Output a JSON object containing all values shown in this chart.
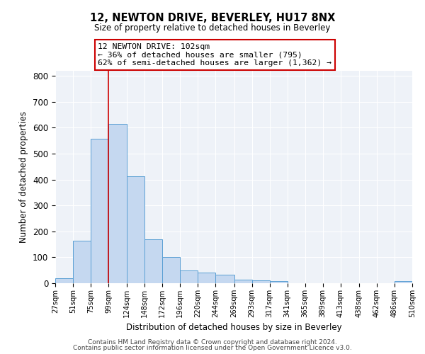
{
  "title": "12, NEWTON DRIVE, BEVERLEY, HU17 8NX",
  "subtitle": "Size of property relative to detached houses in Beverley",
  "xlabel": "Distribution of detached houses by size in Beverley",
  "ylabel": "Number of detached properties",
  "bar_left_edges": [
    27,
    51,
    75,
    99,
    124,
    148,
    172,
    196,
    220,
    244,
    269,
    293,
    317,
    341,
    365,
    389,
    413,
    438,
    462,
    486
  ],
  "bar_heights": [
    18,
    165,
    558,
    615,
    413,
    170,
    102,
    50,
    40,
    33,
    13,
    11,
    7,
    0,
    0,
    0,
    0,
    0,
    0,
    8
  ],
  "bar_widths": [
    24,
    24,
    24,
    25,
    24,
    24,
    24,
    24,
    24,
    25,
    24,
    24,
    24,
    24,
    24,
    24,
    25,
    24,
    24,
    24
  ],
  "tick_labels": [
    "27sqm",
    "51sqm",
    "75sqm",
    "99sqm",
    "124sqm",
    "148sqm",
    "172sqm",
    "196sqm",
    "220sqm",
    "244sqm",
    "269sqm",
    "293sqm",
    "317sqm",
    "341sqm",
    "365sqm",
    "389sqm",
    "413sqm",
    "438sqm",
    "462sqm",
    "486sqm",
    "510sqm"
  ],
  "tick_positions": [
    27,
    51,
    75,
    99,
    124,
    148,
    172,
    196,
    220,
    244,
    269,
    293,
    317,
    341,
    365,
    389,
    413,
    438,
    462,
    486,
    510
  ],
  "bar_color": "#c5d8f0",
  "bar_edge_color": "#5a9fd4",
  "property_line_x": 99,
  "annotation_line1": "12 NEWTON DRIVE: 102sqm",
  "annotation_line2": "← 36% of detached houses are smaller (795)",
  "annotation_line3": "62% of semi-detached houses are larger (1,362) →",
  "annotation_box_color": "#cc0000",
  "ylim": [
    0,
    820
  ],
  "yticks": [
    0,
    100,
    200,
    300,
    400,
    500,
    600,
    700,
    800
  ],
  "xlim_left": 27,
  "xlim_right": 510,
  "bg_color": "#eef2f8",
  "footer1": "Contains HM Land Registry data © Crown copyright and database right 2024.",
  "footer2": "Contains public sector information licensed under the Open Government Licence v3.0."
}
